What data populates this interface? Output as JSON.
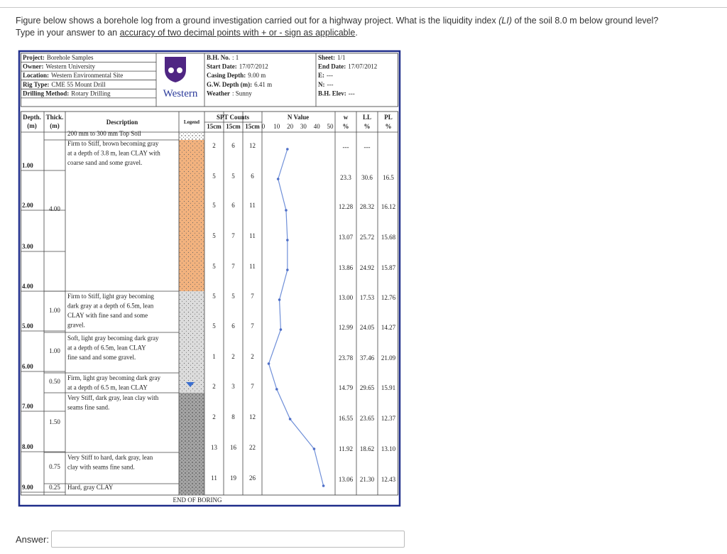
{
  "question": {
    "line1": [
      "Figure below shows a borehole log from a ground investigation carried out for a highway project. What is the liquidity index ",
      "(LI)",
      " of the soil 8.0 m below ground level?"
    ],
    "line2": [
      "Type in your answer to an ",
      "accuracy of two decimal points with + or - sign as applicable",
      "."
    ]
  },
  "log": {
    "header_left": [
      [
        "Project:",
        "Borehole Samples"
      ],
      [
        "Owner:",
        "Western University"
      ],
      [
        "Location:",
        "Western Environmental Site"
      ],
      [
        "Rig Type:",
        "CME 55 Mount Drill"
      ],
      [
        "Drilling Method:",
        "Rotary Drilling"
      ]
    ],
    "logo": "Western",
    "header_mid": [
      [
        "B.H. No.",
        ": 1"
      ],
      [
        "Start Date:",
        "17/07/2012"
      ],
      [
        "Casing Depth:",
        "9.00 m"
      ],
      [
        "G.W. Depth (m):",
        "6.41 m"
      ],
      [
        "Weather",
        ": Sunny"
      ]
    ],
    "header_right": [
      [
        "Sheet:",
        "1/1"
      ],
      [
        "End Date:",
        "17/07/2012"
      ],
      [
        "E:",
        "---"
      ],
      [
        "N:",
        "---"
      ],
      [
        "B.H. Elev:",
        "---"
      ]
    ],
    "columns": {
      "depth": [
        "Depth.",
        "(m)"
      ],
      "thick": [
        "Thick.",
        "(m)"
      ],
      "description": "Description",
      "legend": "Legend",
      "spt": "SPT Counts",
      "spt_sub": [
        "15cm",
        "15cm",
        "15cm"
      ],
      "n_value": "N Value",
      "w": [
        "w",
        "%"
      ],
      "ll": [
        "LL",
        "%"
      ],
      "pl": [
        "PL",
        "%"
      ]
    },
    "n_scale": [
      0,
      10,
      20,
      30,
      40,
      50
    ],
    "depths": [
      "1.00",
      "2.00",
      "3.00",
      "4.00",
      "5.00",
      "6.00",
      "7.00",
      "8.00",
      "9.00"
    ],
    "layers": [
      {
        "description": [
          "200 mm to 300 mm Top Soil"
        ]
      },
      {
        "thick": "4.00",
        "description": [
          "Firm to Stiff, brown becoming gray",
          "at a depth of 3.8 m, lean CLAY with",
          "coarse sand and some gravel."
        ]
      },
      {
        "thick": "1.00",
        "description": [
          "Firm to Stiff, light gray becoming",
          "dark gray at a depth of 6.5m, lean",
          "CLAY with fine sand and some",
          "gravel."
        ]
      },
      {
        "thick": "1.00",
        "description": [
          "Soft, light gray becoming dark gray",
          "at a depth of 6.5m, lean CLAY",
          "fine sand and some gravel."
        ]
      },
      {
        "thick": "0.50",
        "description": [
          "Firm, light gray becoming dark gray",
          "at a depth of 6.5 m, lean CLAY"
        ]
      },
      {
        "thick": "1.50",
        "description": [
          "Very Stiff, dark gray, lean clay with",
          "seams fine sand."
        ]
      },
      {
        "thick": "0.75",
        "description": [
          "Very Stiff to hard, dark gray, lean",
          "clay with seams fine sand."
        ]
      },
      {
        "thick": "0.25",
        "description": [
          "Hard, gray CLAY"
        ]
      }
    ],
    "spt": [
      [
        2,
        6,
        12
      ],
      [
        5,
        5,
        6
      ],
      [
        5,
        6,
        11
      ],
      [
        5,
        7,
        11
      ],
      [
        5,
        7,
        11
      ],
      [
        5,
        5,
        7
      ],
      [
        5,
        6,
        7
      ],
      [
        1,
        2,
        2
      ],
      [
        2,
        3,
        7
      ],
      [
        2,
        8,
        12
      ],
      [
        13,
        16,
        22
      ],
      [
        11,
        19,
        26
      ]
    ],
    "n_values": [
      18,
      11,
      17,
      18,
      18,
      12,
      13,
      4,
      10,
      20,
      38,
      45
    ],
    "lab": [
      [
        "---",
        "---"
      ],
      [
        "23.3",
        "30.6",
        "16.5"
      ],
      [
        "12.28",
        "28.32",
        "16.12"
      ],
      [
        "13.07",
        "25.72",
        "15.68"
      ],
      [
        "13.86",
        "24.92",
        "15.87"
      ],
      [
        "13.00",
        "17.53",
        "12.76"
      ],
      [
        "12.99",
        "24.05",
        "14.27"
      ],
      [
        "23.78",
        "37.46",
        "21.09"
      ],
      [
        "14.79",
        "29.65",
        "15.91"
      ],
      [
        "16.55",
        "23.65",
        "12.37"
      ],
      [
        "11.92",
        "18.62",
        "13.10"
      ],
      [
        "13.06",
        "21.30",
        "12.43"
      ]
    ],
    "end": "END OF BORING"
  },
  "answer_label": "Answer:"
}
